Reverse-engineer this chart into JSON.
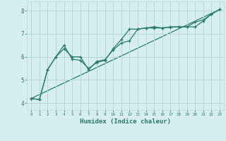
{
  "title": "",
  "xlabel": "Humidex (Indice chaleur)",
  "background_color": "#d6eeee",
  "grid_color": "#b8d8d8",
  "line_color": "#2a7a6a",
  "marker": "+",
  "xlim": [
    -0.5,
    23.5
  ],
  "ylim": [
    3.7,
    8.4
  ],
  "xticks": [
    0,
    1,
    2,
    3,
    4,
    5,
    6,
    7,
    8,
    9,
    10,
    11,
    12,
    13,
    14,
    15,
    16,
    17,
    18,
    19,
    20,
    21,
    22,
    23
  ],
  "yticks": [
    4,
    5,
    6,
    7,
    8
  ],
  "line1_x": [
    0,
    1,
    2,
    3,
    4,
    5,
    6,
    7,
    8,
    9,
    10,
    11,
    12,
    13,
    14,
    15,
    16,
    17,
    18,
    19,
    20,
    21,
    22,
    23
  ],
  "line1_y": [
    4.2,
    4.15,
    5.45,
    6.0,
    6.5,
    5.9,
    5.85,
    5.5,
    5.75,
    5.85,
    6.35,
    6.75,
    7.2,
    7.2,
    7.25,
    7.3,
    7.25,
    7.3,
    7.3,
    7.3,
    7.5,
    7.6,
    7.85,
    8.05
  ],
  "line2_x": [
    0,
    1,
    2,
    3,
    4,
    5,
    6,
    7,
    8,
    9,
    10,
    11,
    12,
    13,
    14,
    15,
    16,
    17,
    18,
    19,
    20,
    21,
    22,
    23
  ],
  "line2_y": [
    4.2,
    4.15,
    5.45,
    6.0,
    6.35,
    6.0,
    6.0,
    5.45,
    5.8,
    5.88,
    6.3,
    6.6,
    6.7,
    7.2,
    7.25,
    7.25,
    7.25,
    7.28,
    7.3,
    7.3,
    7.3,
    7.55,
    7.85,
    8.05
  ],
  "line3_x": [
    0,
    23
  ],
  "line3_y": [
    4.2,
    8.05
  ]
}
